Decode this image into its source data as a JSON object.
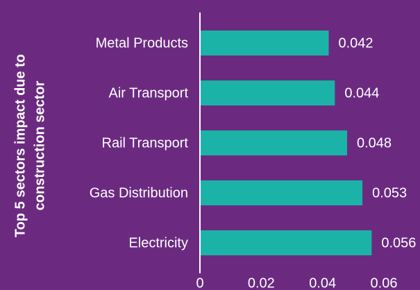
{
  "chart_data": {
    "type": "bar",
    "orientation": "horizontal",
    "y_label": [
      "Top 5 sectors impact due to",
      "construction sector"
    ],
    "categories": [
      "Metal Products",
      "Air Transport",
      "Rail Transport",
      "Gas Distribution",
      "Electricity"
    ],
    "values": [
      0.042,
      0.044,
      0.048,
      0.053,
      0.056
    ],
    "color": "#1bb3a7",
    "xlim": [
      0,
      0.06
    ],
    "xticks": [
      0,
      0.02,
      0.04,
      0.06
    ],
    "grid": false
  }
}
